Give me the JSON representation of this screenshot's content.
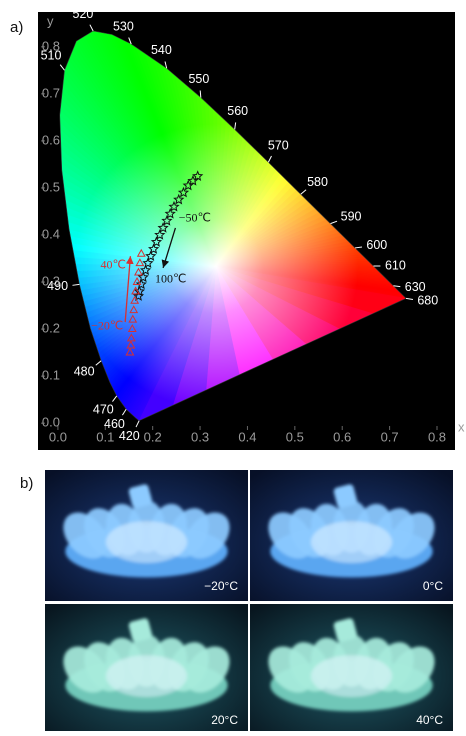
{
  "panel_labels": [
    "a)",
    "b)"
  ],
  "chart_data": {
    "type": "scatter",
    "x_label": "x",
    "y_label": "y",
    "xlim": [
      -0.042,
      0.838
    ],
    "ylim": [
      -0.057,
      0.874
    ],
    "xticks": [
      {
        "value": 0,
        "label": "0.0"
      },
      0.1,
      0.2,
      0.3,
      0.4,
      0.5,
      0.6,
      0.7,
      0.8
    ],
    "yticks": [
      {
        "value": 0,
        "label": "0.0"
      },
      0.1,
      0.2,
      0.3,
      0.4,
      0.5,
      0.6,
      0.7,
      0.8
    ],
    "grid": false,
    "spectral_locus": {
      "wavelength_labels": [
        420,
        null,
        460,
        470,
        null,
        480,
        null,
        490,
        null,
        null,
        null,
        510,
        null,
        520,
        null,
        530,
        540,
        550,
        560,
        570,
        580,
        590,
        600,
        610,
        null,
        630,
        680
      ],
      "x": [
        0.1714,
        0.1644,
        0.144,
        0.1241,
        0.1096,
        0.0913,
        0.0687,
        0.0454,
        0.0235,
        0.0082,
        0.0039,
        0.0139,
        0.0389,
        0.0743,
        0.1142,
        0.1547,
        0.2296,
        0.3016,
        0.3731,
        0.4441,
        0.5125,
        0.5752,
        0.627,
        0.6658,
        0.6915,
        0.7079,
        0.7347
      ],
      "y": [
        0.0051,
        0.0109,
        0.0297,
        0.0578,
        0.0868,
        0.1327,
        0.2007,
        0.295,
        0.4127,
        0.5384,
        0.6548,
        0.7502,
        0.812,
        0.8338,
        0.8262,
        0.8059,
        0.7543,
        0.6923,
        0.6245,
        0.5547,
        0.4866,
        0.4242,
        0.3725,
        0.334,
        0.3083,
        0.292,
        0.2653
      ]
    },
    "series": [
      {
        "marker": "star",
        "color": "#111111",
        "x": [
          0.295,
          0.285,
          0.275,
          0.265,
          0.255,
          0.245,
          0.237,
          0.23,
          0.222,
          0.215,
          0.208,
          0.202,
          0.196,
          0.19,
          0.185,
          0.18,
          0.176,
          0.172,
          0.17
        ],
        "values": [
          0.525,
          0.515,
          0.505,
          0.49,
          0.475,
          0.46,
          0.445,
          0.43,
          0.415,
          0.4,
          0.385,
          0.37,
          0.355,
          0.34,
          0.325,
          0.31,
          0.295,
          0.28,
          0.27
        ]
      },
      {
        "marker": "triangle",
        "color": "#d83030",
        "x": [
          0.152,
          0.154,
          0.155,
          0.157,
          0.158,
          0.16,
          0.162,
          0.164,
          0.167,
          0.17,
          0.173,
          0.176
        ],
        "values": [
          0.15,
          0.165,
          0.18,
          0.2,
          0.22,
          0.24,
          0.26,
          0.28,
          0.3,
          0.32,
          0.34,
          0.36
        ]
      }
    ],
    "annotations": [
      {
        "text": "−50℃",
        "color": "#111111"
      },
      {
        "text": "100℃",
        "color": "#111111"
      },
      {
        "text": "40℃",
        "color": "#d83030"
      },
      {
        "text": "−20℃",
        "color": "#d83030"
      }
    ]
  },
  "photos": [
    {
      "label": "−20°C"
    },
    {
      "label": "0°C"
    },
    {
      "label": "20°C"
    },
    {
      "label": "40°C"
    }
  ]
}
